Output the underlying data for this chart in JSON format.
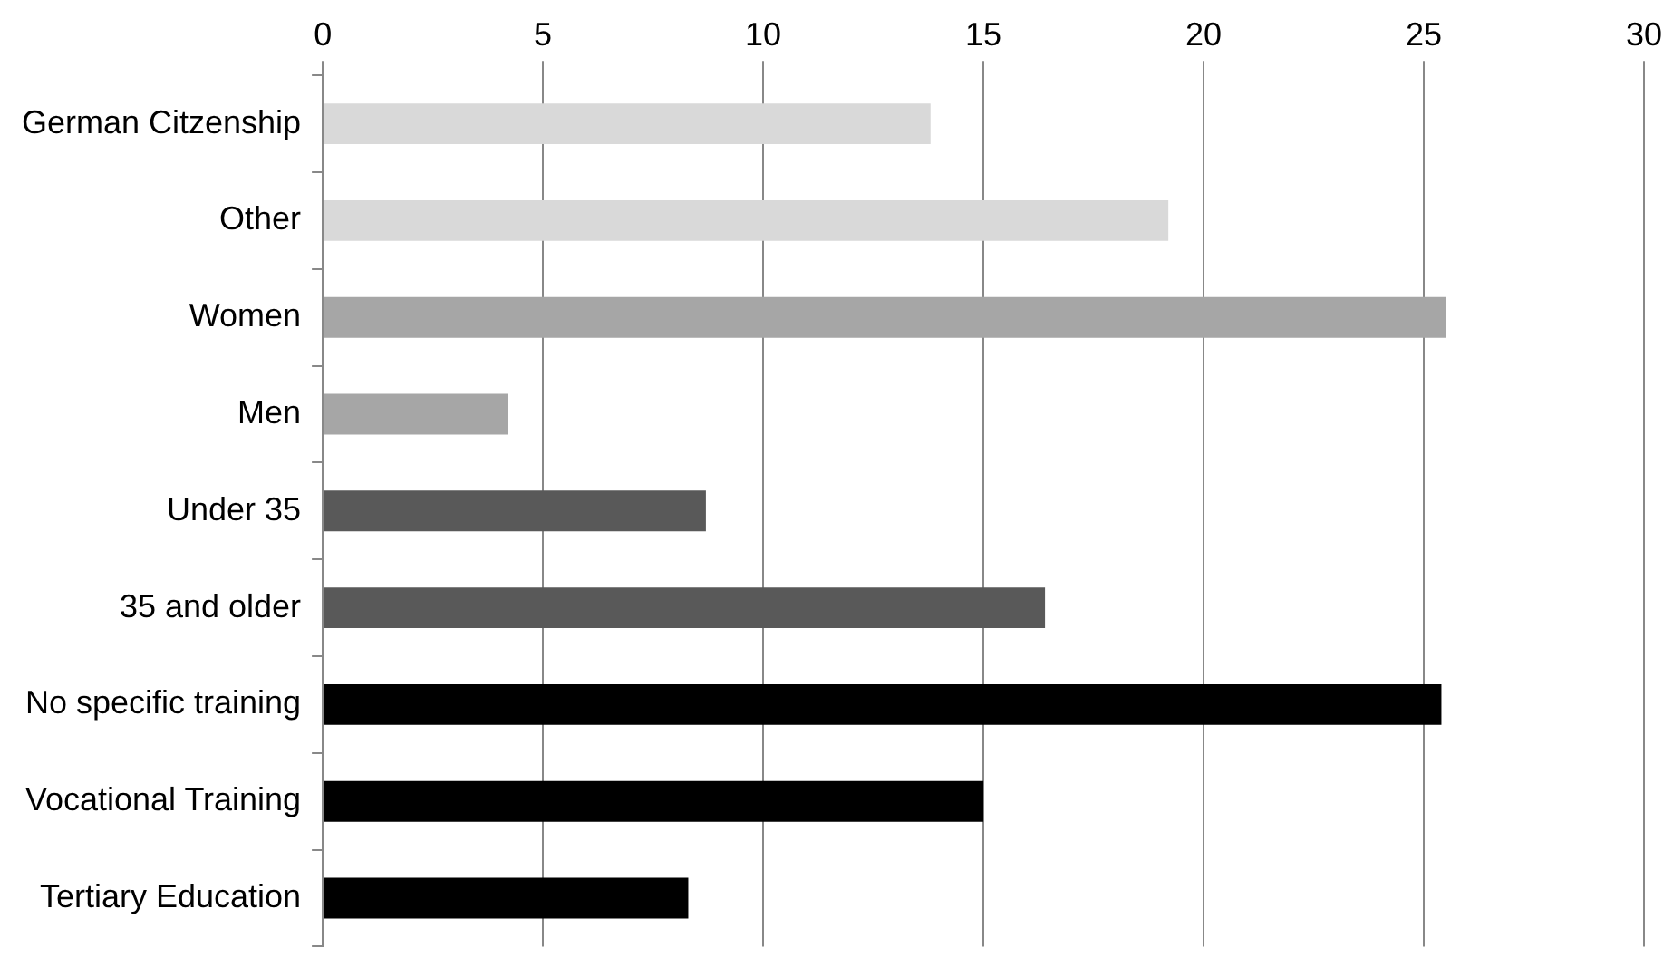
{
  "chart_data": {
    "type": "bar",
    "orientation": "horizontal",
    "categories": [
      "German Citzenship",
      "Other",
      "Women",
      "Men",
      "Under 35",
      "35 and older",
      "No specific training",
      "Vocational Training",
      "Tertiary Education"
    ],
    "values": [
      13.8,
      19.2,
      25.5,
      4.2,
      8.7,
      16.4,
      25.4,
      15.0,
      8.3
    ],
    "colors": [
      "#d9d9d9",
      "#d9d9d9",
      "#a6a6a6",
      "#a6a6a6",
      "#595959",
      "#595959",
      "#000000",
      "#000000",
      "#000000"
    ],
    "xlim": [
      0,
      30
    ],
    "xticks": [
      0,
      5,
      10,
      15,
      20,
      25,
      30
    ],
    "grid": "x",
    "legend": false
  }
}
